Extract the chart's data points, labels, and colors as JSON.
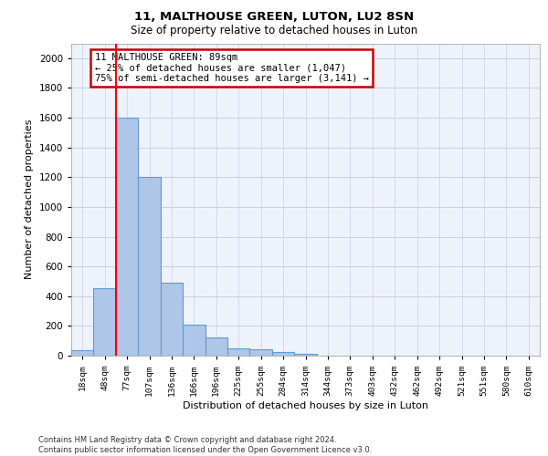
{
  "title1": "11, MALTHOUSE GREEN, LUTON, LU2 8SN",
  "title2": "Size of property relative to detached houses in Luton",
  "xlabel": "Distribution of detached houses by size in Luton",
  "ylabel": "Number of detached properties",
  "footnote": "Contains HM Land Registry data © Crown copyright and database right 2024.\nContains public sector information licensed under the Open Government Licence v3.0.",
  "bin_labels": [
    "18sqm",
    "48sqm",
    "77sqm",
    "107sqm",
    "136sqm",
    "166sqm",
    "196sqm",
    "225sqm",
    "255sqm",
    "284sqm",
    "314sqm",
    "344sqm",
    "373sqm",
    "403sqm",
    "432sqm",
    "462sqm",
    "492sqm",
    "521sqm",
    "551sqm",
    "580sqm",
    "610sqm"
  ],
  "bar_values": [
    35,
    455,
    1600,
    1200,
    490,
    210,
    125,
    50,
    40,
    25,
    15,
    0,
    0,
    0,
    0,
    0,
    0,
    0,
    0,
    0,
    0
  ],
  "bar_color": "#aec6e8",
  "bar_edge_color": "#5b9bd5",
  "red_line_index": 2,
  "annotation_text": "11 MALTHOUSE GREEN: 89sqm\n← 25% of detached houses are smaller (1,047)\n75% of semi-detached houses are larger (3,141) →",
  "annotation_box_color": "#ffffff",
  "annotation_box_edge_color": "#cc0000",
  "ylim": [
    0,
    2100
  ],
  "yticks": [
    0,
    200,
    400,
    600,
    800,
    1000,
    1200,
    1400,
    1600,
    1800,
    2000
  ],
  "grid_color": "#c8d0e0",
  "bg_color": "#eef2fb"
}
